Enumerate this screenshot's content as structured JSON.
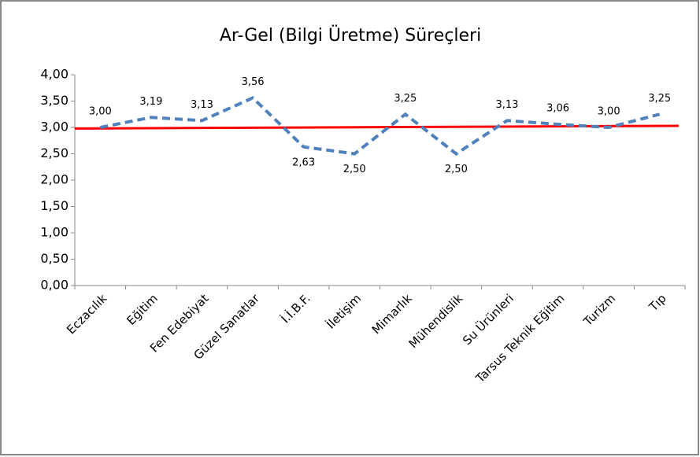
{
  "chart_data": {
    "type": "line",
    "title": "Ar-Gel (Bilgi Üretme) Süreçleri",
    "categories": [
      "Eczacılık",
      "Eğitim",
      "Fen Edebiyat",
      "Güzel Sanatlar",
      "İ.İ.B.F.",
      "İletişim",
      "Mimarlık",
      "Mühendislik",
      "Su Ürünleri",
      "Tarsus Teknik Eğitim",
      "Turizm",
      "Tıp"
    ],
    "values": [
      3.0,
      3.19,
      3.13,
      3.56,
      2.63,
      2.5,
      3.25,
      2.5,
      3.13,
      3.06,
      3.0,
      3.25
    ],
    "value_labels": [
      "3,00",
      "3,19",
      "3,13",
      "3,56",
      "2,63",
      "2,50",
      "3,25",
      "2,50",
      "3,13",
      "3,06",
      "3,00",
      "3,25"
    ],
    "color": "#4f81bd",
    "trend_line": {
      "values": [
        2.98,
        3.03
      ],
      "color": "#ff0000"
    },
    "ylim": [
      0,
      4
    ],
    "yticks": [
      {
        "value": 0,
        "label": "0,00"
      },
      {
        "value": 0.5,
        "label": "0,50"
      },
      {
        "value": 1,
        "label": "1,00"
      },
      {
        "value": 1.5,
        "label": "1,50"
      },
      {
        "value": 2,
        "label": "2,00"
      },
      {
        "value": 2.5,
        "label": "2,50"
      },
      {
        "value": 3,
        "label": "3,00"
      },
      {
        "value": 3.5,
        "label": "3,50"
      },
      {
        "value": 4,
        "label": "4,00"
      }
    ],
    "grid": false
  }
}
